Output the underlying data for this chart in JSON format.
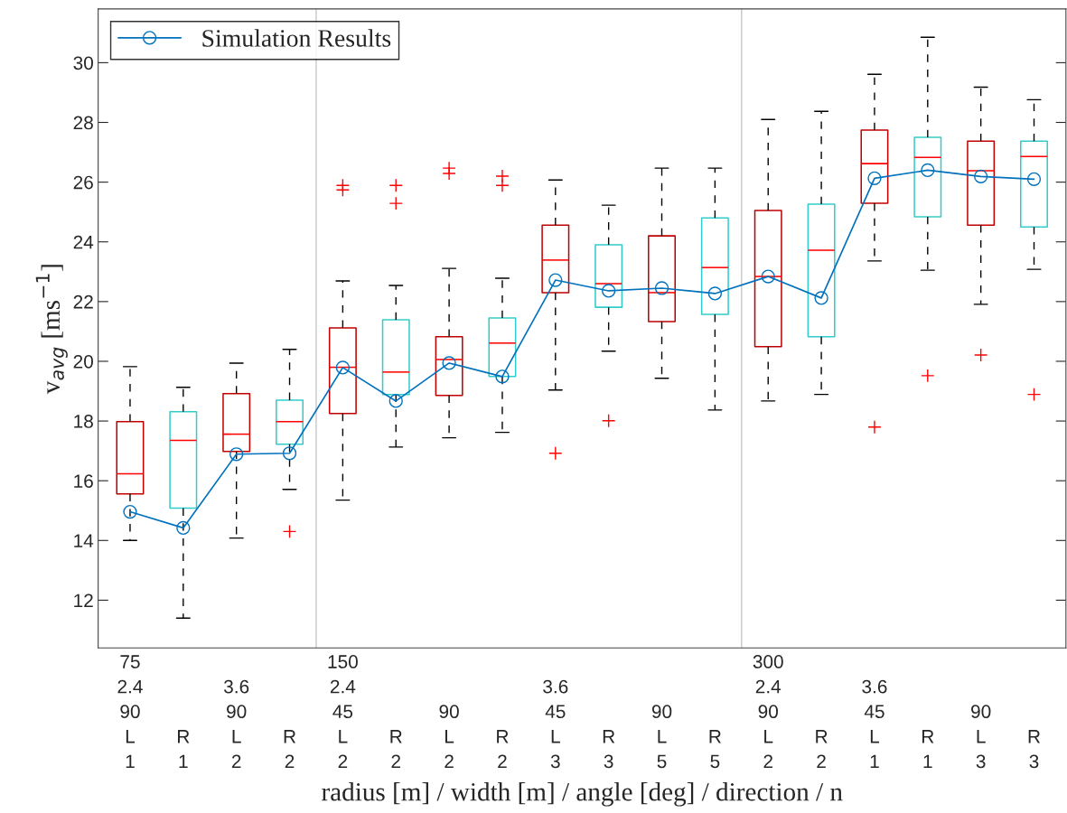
{
  "chart_data": {
    "type": "box",
    "xlabel": "radius [m] / width [m] / angle [deg] / direction / n",
    "ylabel": "v$_{avg}$ [ms$^{−1}$]",
    "categories": [
      "75\n2.4\n90\nL\n1",
      "\n\n\nR\n1",
      "\n3.6\n90\nL\n2",
      "\n\n\nR\n2",
      "150\n2.4\n45\nL\n2",
      "\n\n\nR\n2",
      "\n\n90\nL\n2",
      "\n\n\nR\n2",
      "\n3.6\n45\nL\n3",
      "\n\n\nR\n3",
      "\n\n90\nL\n5",
      "\n\n\nR\n5",
      "300\n2.4\n90\nL\n2",
      "\n\n\nR\n2",
      "\n3.6\n45\nL\n1",
      "\n\n\nR\n1",
      "\n\n90\nL\n3",
      "\n\n\nR\n3"
    ],
    "ylim": [
      10.4,
      31.8
    ],
    "yticks": [
      12,
      14,
      16,
      18,
      20,
      22,
      24,
      26,
      28,
      30
    ],
    "grid": false,
    "legend": "top left",
    "series": [
      {
        "colors": [
          "#c00000",
          "#33cccc",
          "#c00000",
          "#33cccc",
          "#c00000",
          "#33cccc",
          "#c00000",
          "#33cccc",
          "#c00000",
          "#33cccc",
          "#c00000",
          "#33cccc",
          "#c00000",
          "#33cccc",
          "#c00000",
          "#33cccc",
          "#c00000",
          "#33cccc"
        ],
        "boxes": [
          {
            "low": 14.0,
            "q1": 15.56,
            "median": 16.23,
            "q3": 17.98,
            "high": 19.82
          },
          {
            "low": 11.4,
            "q1": 15.08,
            "median": 17.35,
            "q3": 18.31,
            "high": 19.13
          },
          {
            "low": 14.08,
            "q1": 16.98,
            "median": 17.56,
            "q3": 18.92,
            "high": 19.94
          },
          {
            "low": 15.71,
            "q1": 17.22,
            "median": 17.98,
            "q3": 18.7,
            "high": 20.4,
            "outliers": [
              14.3
            ]
          },
          {
            "low": 15.35,
            "q1": 18.25,
            "median": 19.8,
            "q3": 21.12,
            "high": 22.69,
            "outliers": [
              25.89,
              25.74
            ]
          },
          {
            "low": 17.13,
            "q1": 18.89,
            "median": 19.64,
            "q3": 21.39,
            "high": 22.54,
            "outliers": [
              25.89,
              25.29
            ]
          },
          {
            "low": 17.44,
            "q1": 18.86,
            "median": 20.06,
            "q3": 20.82,
            "high": 23.11,
            "outliers": [
              26.47,
              26.29
            ]
          },
          {
            "low": 17.62,
            "q1": 19.49,
            "median": 20.61,
            "q3": 21.45,
            "high": 22.78,
            "outliers": [
              26.2,
              25.89
            ]
          },
          {
            "low": 19.04,
            "q1": 22.3,
            "median": 23.39,
            "q3": 24.56,
            "high": 26.07,
            "outliers": [
              16.92
            ]
          },
          {
            "low": 20.34,
            "q1": 21.81,
            "median": 22.6,
            "q3": 23.9,
            "high": 25.23,
            "outliers": [
              18.01
            ]
          },
          {
            "low": 19.43,
            "q1": 21.33,
            "median": 22.3,
            "q3": 24.2,
            "high": 26.47
          },
          {
            "low": 18.37,
            "q1": 21.57,
            "median": 23.14,
            "q3": 24.8,
            "high": 26.47
          },
          {
            "low": 18.67,
            "q1": 20.49,
            "median": 22.84,
            "q3": 25.05,
            "high": 28.1
          },
          {
            "low": 18.89,
            "q1": 20.82,
            "median": 23.72,
            "q3": 25.26,
            "high": 28.37
          },
          {
            "low": 23.36,
            "q1": 25.29,
            "median": 26.62,
            "q3": 27.74,
            "high": 29.61,
            "outliers": [
              17.8
            ]
          },
          {
            "low": 23.05,
            "q1": 24.84,
            "median": 26.83,
            "q3": 27.5,
            "high": 30.85,
            "outliers": [
              19.52
            ]
          },
          {
            "low": 21.91,
            "q1": 24.56,
            "median": 26.38,
            "q3": 27.37,
            "high": 29.18,
            "outliers": [
              20.21
            ]
          },
          {
            "low": 23.08,
            "q1": 24.5,
            "median": 26.86,
            "q3": 27.37,
            "high": 28.76,
            "outliers": [
              18.89
            ]
          }
        ]
      },
      {
        "type": "line",
        "name": "Simulation Results",
        "color": "#0072bd",
        "marker": "circle",
        "values": [
          14.96,
          14.42,
          16.89,
          16.92,
          19.79,
          18.67,
          19.94,
          19.49,
          22.72,
          22.36,
          22.45,
          22.27,
          22.84,
          22.12,
          26.13,
          26.4,
          26.19,
          26.1
        ]
      }
    ]
  }
}
